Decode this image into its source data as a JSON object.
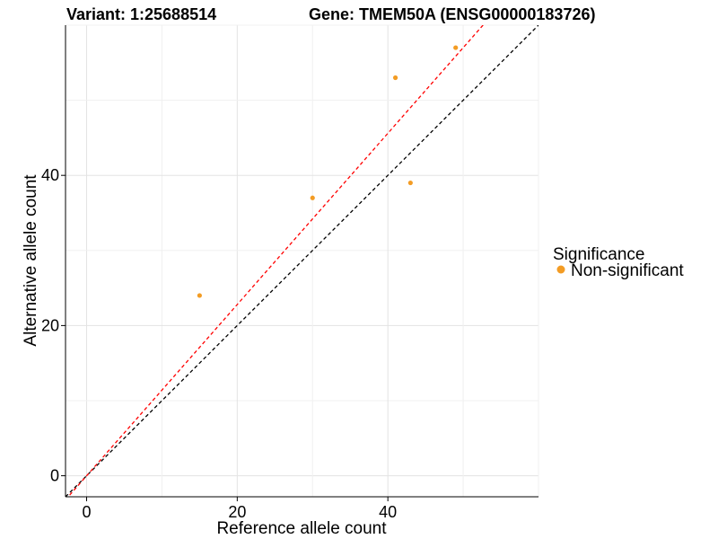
{
  "chart_data": {
    "type": "scatter",
    "title_left": "Variant: 1:25688514",
    "title_right": "Gene: TMEM50A (ENSG00000183726)",
    "xlabel": "Reference allele count",
    "ylabel": "Alternative allele count",
    "xlim": [
      -2.8,
      60
    ],
    "ylim": [
      -2.8,
      60
    ],
    "x_ticks": [
      0,
      20,
      40
    ],
    "y_ticks": [
      0,
      20,
      40
    ],
    "x_ticks_labels": [
      "0",
      "20",
      "40"
    ],
    "y_ticks_labels": [
      "0",
      "20",
      "40"
    ],
    "grid": true,
    "legend": {
      "title": "Significance",
      "position": "right",
      "entries": [
        {
          "label": "Non-significant",
          "color": "#f39c24"
        }
      ]
    },
    "series": [
      {
        "name": "Non-significant",
        "color": "#f39c24",
        "points": [
          {
            "x": 15,
            "y": 24
          },
          {
            "x": 30,
            "y": 37
          },
          {
            "x": 41,
            "y": 53
          },
          {
            "x": 43,
            "y": 39
          },
          {
            "x": 49,
            "y": 57
          }
        ]
      }
    ],
    "reference_lines": [
      {
        "slope": 1.0,
        "intercept": 0,
        "color": "#000000",
        "style": "dashed"
      },
      {
        "slope": 1.14,
        "intercept": 0,
        "color": "#ff0000",
        "style": "dashed"
      }
    ]
  }
}
